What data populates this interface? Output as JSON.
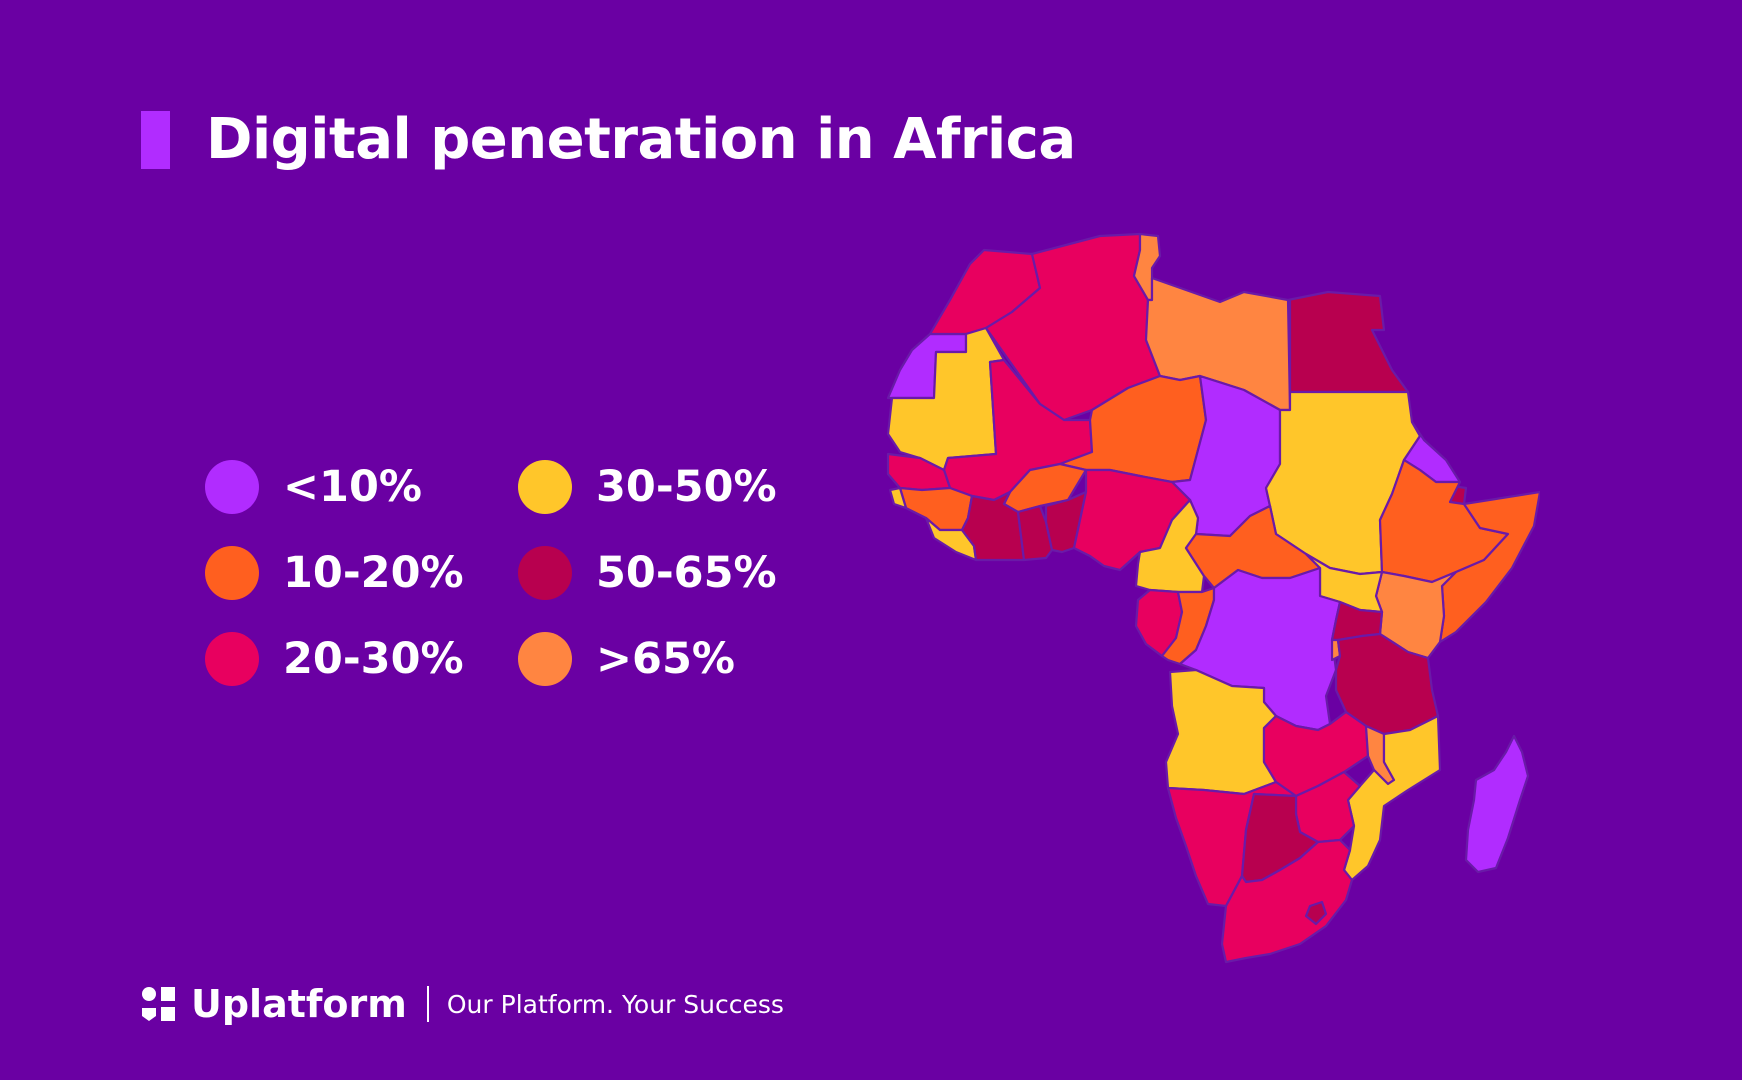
{
  "title": "Digital penetration in Africa",
  "colors": {
    "background": "#6a00a3",
    "accent_bar": "#b12cff",
    "lt10": "#b12cff",
    "p10_20": "#ff5f1f",
    "p20_30": "#e8005f",
    "p30_50": "#ffc62a",
    "p50_65": "#b8004f",
    "gt65": "#ff8541"
  },
  "legend": [
    {
      "label": "<10%",
      "color": "#b12cff"
    },
    {
      "label": "30-50%",
      "color": "#ffc62a"
    },
    {
      "label": "10-20%",
      "color": "#ff5f1f"
    },
    {
      "label": "50-65%",
      "color": "#b8004f"
    },
    {
      "label": "20-30%",
      "color": "#e8005f"
    },
    {
      "label": ">65%",
      "color": "#ff8541"
    }
  ],
  "footer": {
    "brand": "Uplatform",
    "tagline": "Our Platform. Your Success",
    "logo_icon": "uplatform-logo-icon"
  }
}
